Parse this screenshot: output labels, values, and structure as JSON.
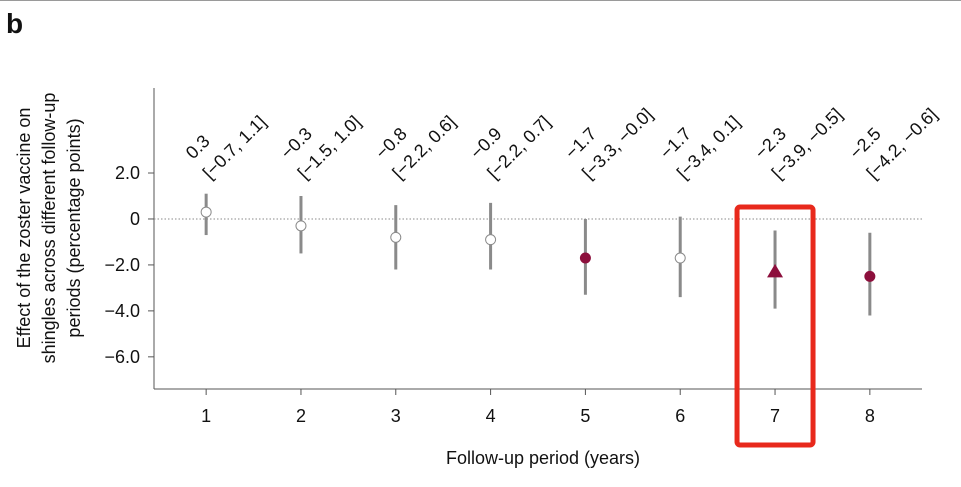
{
  "panel_label": "b",
  "chart_data": {
    "type": "scatter",
    "title": "",
    "xlabel": "Follow-up period (years)",
    "ylabel": [
      "Effect of the zoster vaccine on",
      "shingles across different follow-up",
      "periods (percentage points)"
    ],
    "x": [
      1,
      2,
      3,
      4,
      5,
      6,
      7,
      8
    ],
    "xticks": [
      "1",
      "2",
      "3",
      "4",
      "5",
      "6",
      "7",
      "8"
    ],
    "yticks": [
      2.0,
      0,
      -2.0,
      -4.0,
      -6.0
    ],
    "ytick_labels": [
      "2.0",
      "0",
      "−2.0",
      "−4.0",
      "−6.0"
    ],
    "ylim": [
      -7.4,
      5.7
    ],
    "xlim": [
      0.45,
      8.55
    ],
    "reference_line_y": 0,
    "points": [
      {
        "x": 1,
        "estimate": 0.3,
        "ci_low": -0.7,
        "ci_high": 1.1,
        "estimate_label": "0.3",
        "ci_label": "[−0.7, 1.1]",
        "marker": "circle-open"
      },
      {
        "x": 2,
        "estimate": -0.3,
        "ci_low": -1.5,
        "ci_high": 1.0,
        "estimate_label": "−0.3",
        "ci_label": "[−1.5, 1.0]",
        "marker": "circle-open"
      },
      {
        "x": 3,
        "estimate": -0.8,
        "ci_low": -2.2,
        "ci_high": 0.6,
        "estimate_label": "−0.8",
        "ci_label": "[−2.2, 0.6]",
        "marker": "circle-open"
      },
      {
        "x": 4,
        "estimate": -0.9,
        "ci_low": -2.2,
        "ci_high": 0.7,
        "estimate_label": "−0.9",
        "ci_label": "[−2.2, 0.7]",
        "marker": "circle-open"
      },
      {
        "x": 5,
        "estimate": -1.7,
        "ci_low": -3.3,
        "ci_high": 0.0,
        "estimate_label": "−1.7",
        "ci_label": "[−3.3, −0.0]",
        "marker": "circle-filled"
      },
      {
        "x": 6,
        "estimate": -1.7,
        "ci_low": -3.4,
        "ci_high": 0.1,
        "estimate_label": "−1.7",
        "ci_label": "[−3.4, 0.1]",
        "marker": "circle-open"
      },
      {
        "x": 7,
        "estimate": -2.3,
        "ci_low": -3.9,
        "ci_high": -0.5,
        "estimate_label": "−2.3",
        "ci_label": "[−3.9, −0.5]",
        "marker": "triangle-filled"
      },
      {
        "x": 8,
        "estimate": -2.5,
        "ci_low": -4.2,
        "ci_high": -0.6,
        "estimate_label": "−2.5",
        "ci_label": "[−4.2, −0.6]",
        "marker": "circle-filled"
      }
    ],
    "highlight_x": 7,
    "grid": false,
    "legend": "none"
  },
  "colors": {
    "filled_marker": "#8c0f3c",
    "open_marker_fill": "#ffffff",
    "open_marker_stroke": "#8a8a8a",
    "error_bar": "#8a8a8a",
    "axis": "#555555",
    "reference_line": "#8a8a8a",
    "highlight_box": "#e8291c",
    "text": "#111111"
  }
}
